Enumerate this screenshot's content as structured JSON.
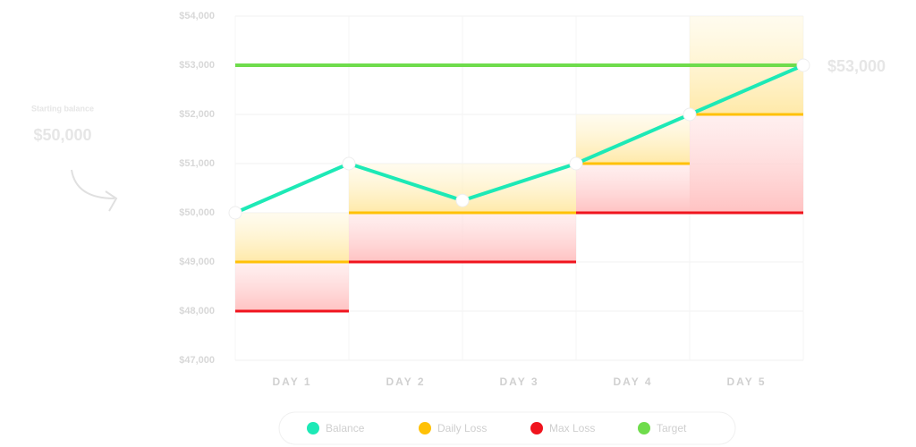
{
  "chart_data": {
    "type": "line",
    "categories": [
      "DAY 1",
      "DAY 2",
      "DAY 3",
      "DAY 4",
      "DAY 5"
    ],
    "balance": {
      "name": "Balance",
      "color": "#1de9b6",
      "values": [
        50000,
        51000,
        50250,
        51000,
        52000,
        53000
      ]
    },
    "daily_loss": {
      "name": "Daily Loss",
      "color": "#ffc107",
      "values": [
        49000,
        50000,
        50000,
        51000,
        52000
      ]
    },
    "max_loss": {
      "name": "Max Loss",
      "color": "#f0141e",
      "values": [
        48000,
        49000,
        49000,
        50000,
        50000
      ]
    },
    "target": {
      "name": "Target",
      "color": "#6fdc4c",
      "value": 53000
    },
    "ylim": [
      47000,
      54000
    ],
    "yticks": [
      {
        "value": 47000,
        "label": "$47,000"
      },
      {
        "value": 48000,
        "label": "$48,000"
      },
      {
        "value": 49000,
        "label": "$49,000"
      },
      {
        "value": 50000,
        "label": "$50,000"
      },
      {
        "value": 51000,
        "label": "$51,000"
      },
      {
        "value": 52000,
        "label": "$52,000"
      },
      {
        "value": 53000,
        "label": "$53,000"
      },
      {
        "value": 54000,
        "label": "$54,000"
      }
    ],
    "grid": true,
    "annotations": {
      "start_label": "Starting balance",
      "start_value": "$50,000",
      "end_value": "$53,000"
    }
  }
}
